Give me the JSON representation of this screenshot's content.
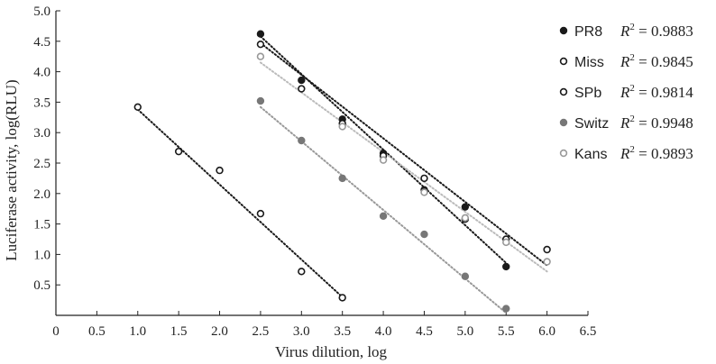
{
  "chart_data": {
    "type": "scatter",
    "xlabel": "Virus dilution, log",
    "ylabel": "Luciferase activity, log(RLU)",
    "xlim": [
      0,
      6.5
    ],
    "ylim": [
      0,
      5.0
    ],
    "x_ticks": [
      "0",
      "0.5",
      "1.0",
      "1.5",
      "2.0",
      "2.5",
      "3.0",
      "3.5",
      "4.0",
      "4.5",
      "5.0",
      "5.5",
      "6.0",
      "6.5"
    ],
    "y_ticks": [
      "0.5",
      "1.0",
      "1.5",
      "2.0",
      "2.5",
      "3.0",
      "3.5",
      "4.0",
      "4.5",
      "5.0"
    ],
    "grid": false,
    "legend_position": "top-right",
    "series": [
      {
        "name": "PR8",
        "r2_text": "= 0.9883",
        "marker": "filled",
        "color": "#1a1a1a",
        "line_color": "#1a1a1a",
        "x": [
          2.5,
          3.0,
          3.5,
          4.0,
          4.5,
          5.0,
          5.5
        ],
        "y": [
          4.62,
          3.86,
          3.22,
          2.66,
          2.06,
          1.78,
          0.8
        ],
        "fit": [
          [
            2.5,
            4.58
          ],
          [
            5.5,
            0.86
          ]
        ]
      },
      {
        "name": "Miss",
        "r2_text": "= 0.9845",
        "marker": "open",
        "color": "#1a1a1a",
        "line_color": "#1a1a1a",
        "x": [
          2.5,
          3.0,
          3.5,
          4.0,
          4.5,
          5.0,
          5.5,
          6.0
        ],
        "y": [
          4.45,
          3.72,
          3.15,
          2.62,
          2.25,
          1.58,
          1.25,
          1.08
        ],
        "fit": [
          [
            2.5,
            4.47
          ],
          [
            6.0,
            0.82
          ]
        ]
      },
      {
        "name": "SPb",
        "r2_text": "= 0.9814",
        "marker": "open",
        "color": "#1a1a1a",
        "line_color": "#1a1a1a",
        "x": [
          1.0,
          1.5,
          2.0,
          2.5,
          3.0,
          3.5
        ],
        "y": [
          3.42,
          2.69,
          2.38,
          1.67,
          0.72,
          0.29
        ],
        "fit": [
          [
            1.0,
            3.38
          ],
          [
            3.5,
            0.3
          ]
        ]
      },
      {
        "name": "Switz",
        "r2_text": "= 0.9948",
        "marker": "filled",
        "color": "#777777",
        "line_color": "#999999",
        "x": [
          2.5,
          3.0,
          3.5,
          4.0,
          4.5,
          5.0,
          5.5
        ],
        "y": [
          3.52,
          2.87,
          2.25,
          1.63,
          1.33,
          0.64,
          0.11
        ],
        "fit": [
          [
            2.5,
            3.42
          ],
          [
            5.5,
            0.04
          ]
        ]
      },
      {
        "name": "Kans",
        "r2_text": "= 0.9893",
        "marker": "open",
        "color": "#999999",
        "line_color": "#bbbbbb",
        "x": [
          2.5,
          3.5,
          4.0,
          4.5,
          5.0,
          5.5,
          6.0
        ],
        "y": [
          4.25,
          3.1,
          2.55,
          2.02,
          1.6,
          1.2,
          0.88
        ],
        "fit": [
          [
            2.5,
            4.15
          ],
          [
            6.0,
            0.72
          ]
        ]
      }
    ]
  }
}
